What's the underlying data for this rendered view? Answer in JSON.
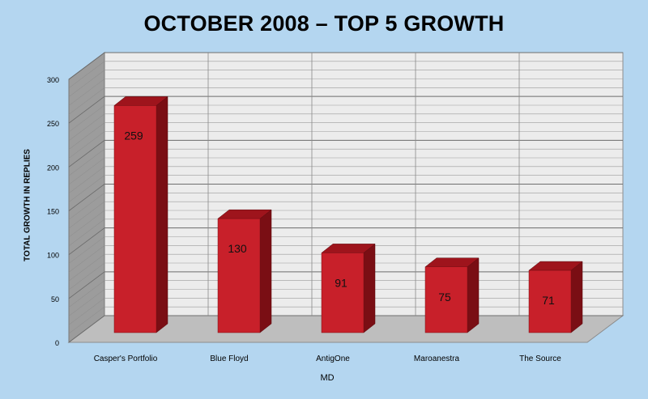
{
  "chart_data": {
    "type": "bar",
    "title": "OCTOBER 2008 – TOP 5 GROWTH",
    "xlabel": "MD",
    "ylabel": "TOTAL GROWTH IN REPLIES",
    "categories": [
      "Casper's Portfolio",
      "Blue Floyd",
      "AntigOne",
      "Maroanestra",
      "The Source"
    ],
    "values": [
      259,
      130,
      91,
      75,
      71
    ],
    "ylim": [
      0,
      300
    ],
    "yticks": [
      0,
      50,
      100,
      150,
      200,
      250,
      300
    ],
    "grid": true,
    "style": "3d",
    "colors": {
      "bar_front": "#c8202a",
      "bar_top": "#9e141c",
      "bar_side": "#7a0e14",
      "background": "#b4d6f0",
      "plot_back": "#ececec",
      "plot_floor": "#bebebe",
      "plot_side": "#9c9c9c"
    }
  }
}
